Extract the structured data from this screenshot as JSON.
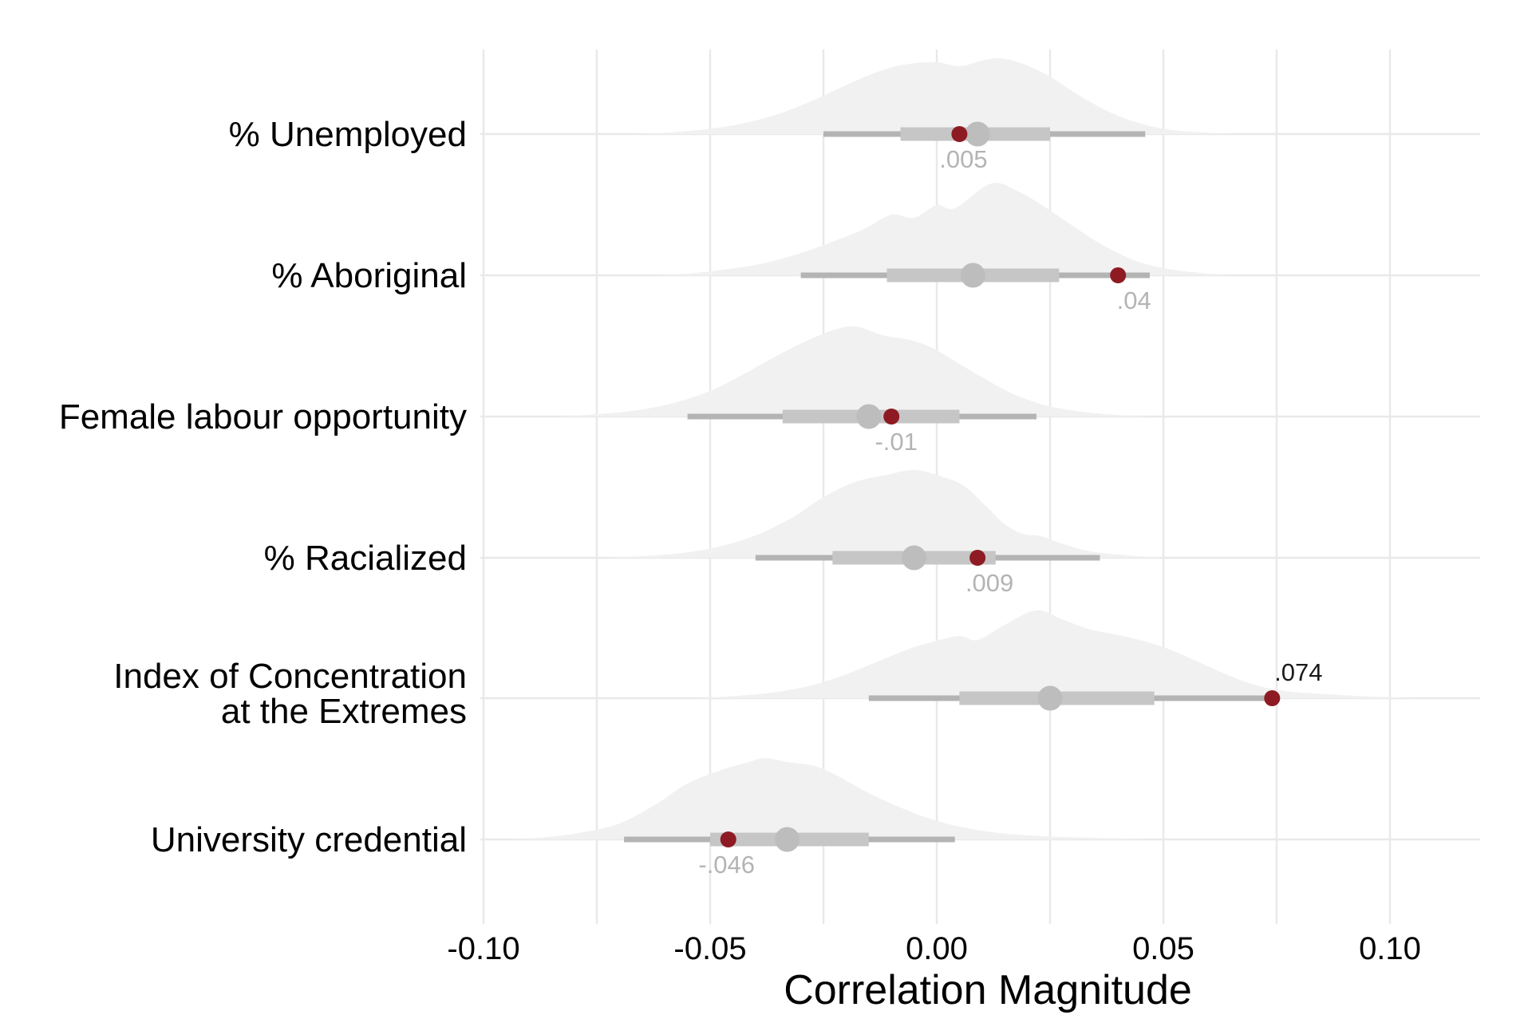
{
  "chart_data": {
    "type": "area",
    "subtype": "ridgeline-halfeye-interval-plot",
    "title": "",
    "xlabel": "Correlation Magnitude",
    "ylabel": "",
    "xlim": [
      -0.101,
      0.12
    ],
    "grid": "on",
    "legend": "none",
    "x_ticks": [
      -0.1,
      -0.05,
      0.0,
      0.05,
      0.1
    ],
    "x_tick_labels": [
      "-0.10",
      "-0.05",
      "0.00",
      "0.05",
      "0.10"
    ],
    "x_gridline_step": 0.025,
    "categories": [
      "% Unemployed",
      "% Aboriginal",
      "Female labour opportunity",
      "% Racialized",
      "Index of Concentration at the Extremes",
      "University credential"
    ],
    "rows": [
      {
        "label_lines": [
          "% Unemployed"
        ],
        "observed": 0.005,
        "observed_label": ".005",
        "label_style": "gray",
        "median": 0.009,
        "ci_thin": [
          -0.025,
          0.046
        ],
        "ci_thick": [
          -0.008,
          0.025
        ],
        "density": [
          [
            -0.067,
            0
          ],
          [
            -0.059,
            2
          ],
          [
            -0.051,
            6
          ],
          [
            -0.043,
            13
          ],
          [
            -0.035,
            25
          ],
          [
            -0.027,
            43
          ],
          [
            -0.019,
            64
          ],
          [
            -0.012,
            80
          ],
          [
            -0.006,
            88
          ],
          [
            0.0,
            90
          ],
          [
            0.005,
            85
          ],
          [
            0.01,
            92
          ],
          [
            0.014,
            95
          ],
          [
            0.019,
            88
          ],
          [
            0.025,
            72
          ],
          [
            0.031,
            50
          ],
          [
            0.038,
            28
          ],
          [
            0.045,
            13
          ],
          [
            0.052,
            5
          ],
          [
            0.059,
            2
          ],
          [
            0.066,
            0
          ]
        ]
      },
      {
        "label_lines": [
          "% Aboriginal"
        ],
        "observed": 0.04,
        "observed_label": ".04",
        "label_style": "gray",
        "median": 0.008,
        "ci_thin": [
          -0.03,
          0.047
        ],
        "ci_thick": [
          -0.011,
          0.027
        ],
        "density": [
          [
            -0.063,
            0
          ],
          [
            -0.055,
            2
          ],
          [
            -0.047,
            7
          ],
          [
            -0.039,
            14
          ],
          [
            -0.031,
            26
          ],
          [
            -0.023,
            42
          ],
          [
            -0.016,
            58
          ],
          [
            -0.01,
            76
          ],
          [
            -0.005,
            72
          ],
          [
            0.0,
            88
          ],
          [
            0.004,
            84
          ],
          [
            0.012,
            115
          ],
          [
            0.018,
            105
          ],
          [
            0.024,
            85
          ],
          [
            0.03,
            62
          ],
          [
            0.036,
            40
          ],
          [
            0.043,
            20
          ],
          [
            0.05,
            9
          ],
          [
            0.058,
            3
          ],
          [
            0.066,
            0
          ]
        ]
      },
      {
        "label_lines": [
          "Female labour opportunity"
        ],
        "observed": -0.01,
        "observed_label": "-.01",
        "label_style": "gray",
        "median": -0.015,
        "ci_thin": [
          -0.055,
          0.022
        ],
        "ci_thick": [
          -0.034,
          0.005
        ],
        "density": [
          [
            -0.084,
            0
          ],
          [
            -0.075,
            3
          ],
          [
            -0.066,
            8
          ],
          [
            -0.058,
            17
          ],
          [
            -0.05,
            32
          ],
          [
            -0.043,
            52
          ],
          [
            -0.036,
            74
          ],
          [
            -0.029,
            94
          ],
          [
            -0.023,
            108
          ],
          [
            -0.018,
            113
          ],
          [
            -0.012,
            102
          ],
          [
            -0.006,
            96
          ],
          [
            -0.001,
            86
          ],
          [
            0.005,
            66
          ],
          [
            0.011,
            46
          ],
          [
            0.017,
            28
          ],
          [
            0.024,
            14
          ],
          [
            0.032,
            6
          ],
          [
            0.04,
            2
          ],
          [
            0.048,
            0
          ]
        ]
      },
      {
        "label_lines": [
          "% Racialized"
        ],
        "observed": 0.009,
        "observed_label": ".009",
        "label_style": "gray",
        "median": -0.005,
        "ci_thin": [
          -0.04,
          0.036
        ],
        "ci_thick": [
          -0.023,
          0.013
        ],
        "density": [
          [
            -0.074,
            0
          ],
          [
            -0.065,
            2
          ],
          [
            -0.056,
            6
          ],
          [
            -0.048,
            14
          ],
          [
            -0.04,
            28
          ],
          [
            -0.032,
            50
          ],
          [
            -0.025,
            76
          ],
          [
            -0.018,
            95
          ],
          [
            -0.011,
            104
          ],
          [
            -0.005,
            110
          ],
          [
            0.001,
            102
          ],
          [
            0.006,
            90
          ],
          [
            0.011,
            64
          ],
          [
            0.015,
            42
          ],
          [
            0.019,
            30
          ],
          [
            0.023,
            27
          ],
          [
            0.028,
            17
          ],
          [
            0.034,
            8
          ],
          [
            0.042,
            3
          ],
          [
            0.051,
            0
          ]
        ]
      },
      {
        "label_lines": [
          "Index of Concentration",
          "at the Extremes"
        ],
        "observed": 0.074,
        "observed_label": ".074",
        "label_style": "black",
        "median": 0.025,
        "ci_thin": [
          -0.015,
          0.073
        ],
        "ci_thick": [
          0.005,
          0.048
        ],
        "density": [
          [
            -0.053,
            0
          ],
          [
            -0.044,
            3
          ],
          [
            -0.035,
            8
          ],
          [
            -0.027,
            17
          ],
          [
            -0.02,
            30
          ],
          [
            -0.013,
            46
          ],
          [
            -0.006,
            62
          ],
          [
            0.0,
            72
          ],
          [
            0.005,
            78
          ],
          [
            0.009,
            73
          ],
          [
            0.015,
            92
          ],
          [
            0.022,
            110
          ],
          [
            0.028,
            98
          ],
          [
            0.034,
            86
          ],
          [
            0.041,
            78
          ],
          [
            0.049,
            66
          ],
          [
            0.056,
            50
          ],
          [
            0.063,
            32
          ],
          [
            0.07,
            17
          ],
          [
            0.077,
            9
          ],
          [
            0.086,
            5
          ],
          [
            0.096,
            2
          ],
          [
            0.106,
            0
          ]
        ]
      },
      {
        "label_lines": [
          "University credential"
        ],
        "observed": -0.046,
        "observed_label": "-.046",
        "label_style": "gray",
        "median": -0.033,
        "ci_thin": [
          -0.069,
          0.004
        ],
        "ci_thick": [
          -0.05,
          -0.015
        ],
        "density": [
          [
            -0.094,
            0
          ],
          [
            -0.086,
            3
          ],
          [
            -0.078,
            9
          ],
          [
            -0.07,
            20
          ],
          [
            -0.062,
            44
          ],
          [
            -0.055,
            70
          ],
          [
            -0.047,
            88
          ],
          [
            -0.042,
            96
          ],
          [
            -0.038,
            102
          ],
          [
            -0.033,
            97
          ],
          [
            -0.027,
            92
          ],
          [
            -0.022,
            80
          ],
          [
            -0.015,
            58
          ],
          [
            -0.008,
            40
          ],
          [
            -0.001,
            25
          ],
          [
            0.006,
            15
          ],
          [
            0.014,
            8
          ],
          [
            0.024,
            4
          ],
          [
            0.035,
            2
          ],
          [
            0.048,
            0
          ]
        ]
      }
    ],
    "colors": {
      "observed_point": "#8e1b23",
      "median_point": "#bdbdbd",
      "interval_thick": "#c6c6c6",
      "interval_thin": "#b4b4b4",
      "density_fill": "#f1f1f1",
      "gridline": "#e9e9e9",
      "value_label_gray": "#b4b4b4",
      "value_label_black": "#1a1a1a",
      "axis_text": "#000000",
      "background": "#ffffff"
    }
  }
}
